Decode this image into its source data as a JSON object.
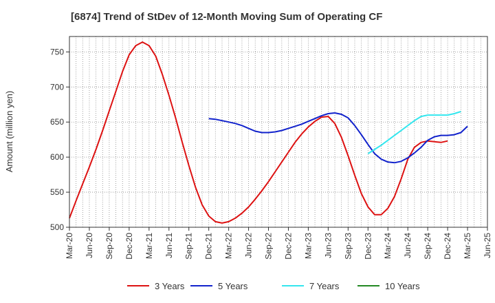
{
  "chart_data": {
    "type": "line",
    "title": "[6874]  Trend of StDev of 12-Month Moving Sum of Operating CF",
    "xlabel": "",
    "ylabel": "Amount (million yen)",
    "ylim": [
      500,
      772
    ],
    "yticks": [
      500,
      550,
      600,
      650,
      700,
      750
    ],
    "x_ticks": [
      "Mar-20",
      "Jun-20",
      "Sep-20",
      "Dec-20",
      "Mar-21",
      "Jun-21",
      "Sep-21",
      "Dec-21",
      "Mar-22",
      "Jun-22",
      "Sep-22",
      "Dec-22",
      "Mar-23",
      "Jun-23",
      "Sep-23",
      "Dec-23",
      "Mar-24",
      "Jun-24",
      "Sep-24",
      "Dec-24",
      "Mar-25",
      "Jun-25"
    ],
    "grid": true,
    "legend_position": "bottom",
    "series": [
      {
        "name": "3 Years",
        "color": "#dd1111",
        "points": [
          [
            0,
            513
          ],
          [
            1,
            538
          ],
          [
            2,
            562
          ],
          [
            3,
            586
          ],
          [
            4,
            611
          ],
          [
            5,
            638
          ],
          [
            6,
            666
          ],
          [
            7,
            694
          ],
          [
            8,
            722
          ],
          [
            9,
            746
          ],
          [
            10,
            759
          ],
          [
            11,
            764
          ],
          [
            12,
            759
          ],
          [
            13,
            744
          ],
          [
            14,
            718
          ],
          [
            15,
            688
          ],
          [
            16,
            656
          ],
          [
            17,
            621
          ],
          [
            18,
            588
          ],
          [
            19,
            557
          ],
          [
            20,
            532
          ],
          [
            21,
            516
          ],
          [
            22,
            508
          ],
          [
            23,
            506
          ],
          [
            24,
            508
          ],
          [
            25,
            513
          ],
          [
            26,
            520
          ],
          [
            27,
            529
          ],
          [
            28,
            540
          ],
          [
            29,
            552
          ],
          [
            30,
            565
          ],
          [
            31,
            579
          ],
          [
            32,
            593
          ],
          [
            33,
            607
          ],
          [
            34,
            621
          ],
          [
            35,
            633
          ],
          [
            36,
            643
          ],
          [
            37,
            651
          ],
          [
            38,
            657
          ],
          [
            39,
            658
          ],
          [
            40,
            648
          ],
          [
            41,
            628
          ],
          [
            42,
            602
          ],
          [
            43,
            574
          ],
          [
            44,
            548
          ],
          [
            45,
            529
          ],
          [
            46,
            518
          ],
          [
            47,
            518
          ],
          [
            48,
            527
          ],
          [
            49,
            544
          ],
          [
            50,
            569
          ],
          [
            51,
            597
          ],
          [
            52,
            614
          ],
          [
            53,
            621
          ],
          [
            54,
            623
          ],
          [
            55,
            622
          ],
          [
            56,
            621
          ],
          [
            57,
            623
          ]
        ]
      },
      {
        "name": "5 Years",
        "color": "#1122cc",
        "points": [
          [
            21,
            655
          ],
          [
            22,
            654
          ],
          [
            23,
            652
          ],
          [
            24,
            650
          ],
          [
            25,
            648
          ],
          [
            26,
            645
          ],
          [
            27,
            641
          ],
          [
            28,
            637
          ],
          [
            29,
            635
          ],
          [
            30,
            635
          ],
          [
            31,
            636
          ],
          [
            32,
            638
          ],
          [
            33,
            641
          ],
          [
            34,
            644
          ],
          [
            35,
            647
          ],
          [
            36,
            651
          ],
          [
            37,
            655
          ],
          [
            38,
            659
          ],
          [
            39,
            662
          ],
          [
            40,
            663
          ],
          [
            41,
            661
          ],
          [
            42,
            656
          ],
          [
            43,
            645
          ],
          [
            44,
            632
          ],
          [
            45,
            618
          ],
          [
            46,
            605
          ],
          [
            47,
            597
          ],
          [
            48,
            593
          ],
          [
            49,
            592
          ],
          [
            50,
            594
          ],
          [
            51,
            599
          ],
          [
            52,
            606
          ],
          [
            53,
            614
          ],
          [
            54,
            624
          ],
          [
            55,
            629
          ],
          [
            56,
            631
          ],
          [
            57,
            631
          ],
          [
            58,
            632
          ],
          [
            59,
            635
          ],
          [
            60,
            644
          ]
        ]
      },
      {
        "name": "7 Years",
        "color": "#33e6ee",
        "points": [
          [
            45,
            605
          ],
          [
            46,
            611
          ],
          [
            47,
            617
          ],
          [
            48,
            624
          ],
          [
            49,
            631
          ],
          [
            50,
            638
          ],
          [
            51,
            645
          ],
          [
            52,
            652
          ],
          [
            53,
            658
          ],
          [
            54,
            660
          ],
          [
            55,
            660
          ],
          [
            56,
            660
          ],
          [
            57,
            660
          ],
          [
            58,
            662
          ],
          [
            59,
            665
          ]
        ]
      },
      {
        "name": "10 Years",
        "color": "#228822",
        "points": []
      }
    ]
  }
}
